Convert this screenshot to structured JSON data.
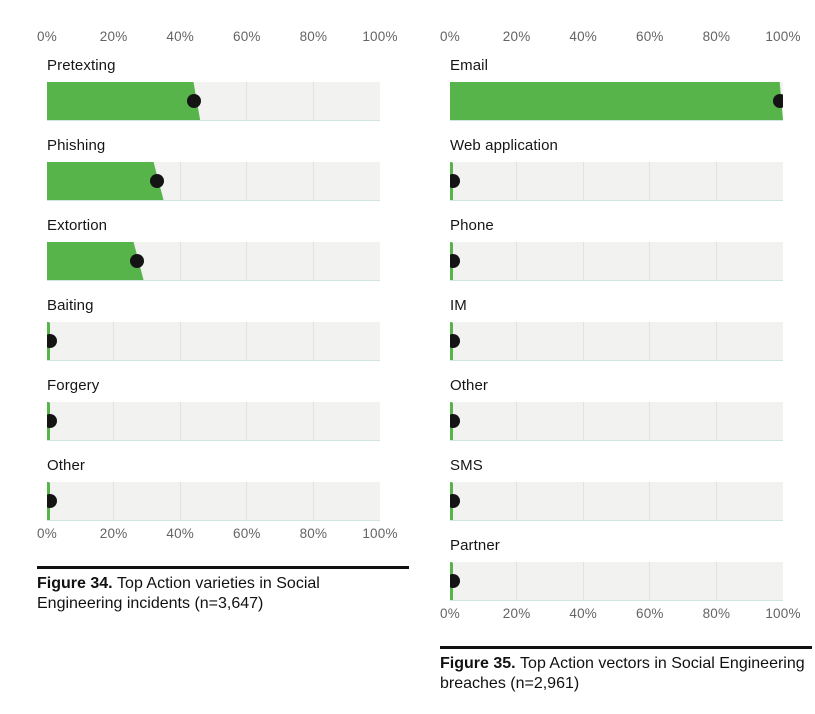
{
  "colors": {
    "bar_green": "#57b44b",
    "dot_black": "#141414",
    "track_gray": "#f2f3f1",
    "gridline": "#e2e2e2",
    "track_bottom_border": "#cfe7db",
    "axis_text": "#646464",
    "label_text": "#161616",
    "caption_rule": "#111111"
  },
  "chart_data": [
    {
      "type": "bar",
      "orientation": "horizontal",
      "axis_range": [
        0,
        100
      ],
      "grid": true,
      "gridline_positions_pct": [
        20,
        40,
        60,
        80
      ],
      "axis_ticks": [
        "0%",
        "20%",
        "40%",
        "60%",
        "80%",
        "100%"
      ],
      "tick_positions_pct": [
        0,
        20,
        40,
        60,
        80,
        100
      ],
      "categories": [
        "Pretexting",
        "Phishing",
        "Extortion",
        "Baiting",
        "Forgery",
        "Other"
      ],
      "values_pct": [
        44,
        33,
        27,
        1,
        1,
        1
      ],
      "bar_edge_top_pct": [
        44,
        32,
        26,
        1,
        1,
        1
      ],
      "bar_edge_bottom_pct": [
        46,
        35,
        29,
        1,
        1,
        1
      ],
      "caption_bold": "Figure 34.",
      "caption_text": "Top Action varieties in Social Engineering incidents (n=3,647)"
    },
    {
      "type": "bar",
      "orientation": "horizontal",
      "axis_range": [
        0,
        100
      ],
      "grid": true,
      "gridline_positions_pct": [
        20,
        40,
        60,
        80
      ],
      "axis_ticks": [
        "0%",
        "20%",
        "40%",
        "60%",
        "80%",
        "100%"
      ],
      "tick_positions_pct": [
        0,
        20,
        40,
        60,
        80,
        100
      ],
      "categories": [
        "Email",
        "Web application",
        "Phone",
        "IM",
        "Other",
        "SMS",
        "Partner"
      ],
      "values_pct": [
        99,
        1,
        1,
        1,
        1,
        1,
        1
      ],
      "bar_edge_top_pct": [
        99,
        1,
        1,
        1,
        1,
        1,
        1
      ],
      "bar_edge_bottom_pct": [
        100,
        1,
        1,
        1,
        1,
        1,
        1
      ],
      "caption_bold": "Figure 35.",
      "caption_text": "Top Action vectors in Social Engineering breaches (n=2,961)"
    }
  ]
}
